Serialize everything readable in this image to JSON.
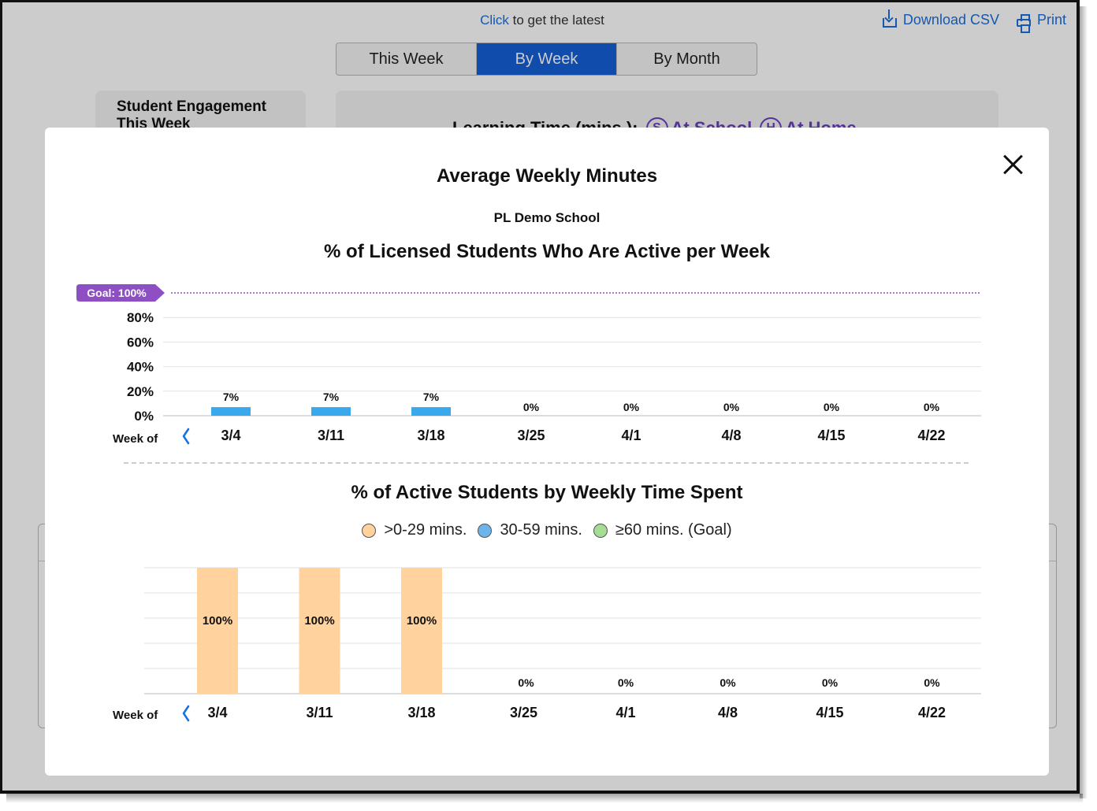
{
  "background": {
    "topline_link": "Click",
    "topline_rest": "to get the latest",
    "download_label": "Download CSV",
    "print_label": "Print",
    "tabs": [
      {
        "label": "This Week",
        "active": false
      },
      {
        "label": "By Week",
        "active": true
      },
      {
        "label": "By Month",
        "active": false
      }
    ],
    "engagement_title_line1": "Student Engagement",
    "engagement_title_line2": "This Week",
    "learning_time_title": "Learning Time (mins.):",
    "at_school_badge": "S",
    "at_school_label": "At School",
    "at_home_badge": "H",
    "at_home_label": "At Home"
  },
  "modal": {
    "title": "Average Weekly Minutes",
    "school": "PL Demo School",
    "close_icon": "close-icon"
  },
  "chart_data": [
    {
      "type": "bar",
      "title": "% of Licensed Students Who Are Active per Week",
      "xlabel": "Week of",
      "categories": [
        "3/4",
        "3/11",
        "3/18",
        "3/25",
        "4/1",
        "4/8",
        "4/15",
        "4/22"
      ],
      "values": [
        7,
        7,
        7,
        0,
        0,
        0,
        0,
        0
      ],
      "value_labels": [
        "7%",
        "7%",
        "7%",
        "0%",
        "0%",
        "0%",
        "0%",
        "0%"
      ],
      "y_ticks": [
        "0%",
        "20%",
        "40%",
        "60%",
        "80%"
      ],
      "ylim": [
        0,
        100
      ],
      "goal_value": 100,
      "goal_label": "Goal: 100%",
      "bar_color": "#3aa8ec",
      "goal_color": "#8e4fc4",
      "grid": true
    },
    {
      "type": "bar",
      "stacked": true,
      "title": "% of Active Students by Weekly Time Spent",
      "xlabel": "Week of",
      "categories": [
        "3/4",
        "3/11",
        "3/18",
        "3/25",
        "4/1",
        "4/8",
        "4/15",
        "4/22"
      ],
      "series": [
        {
          "name": ">0-29 mins.",
          "color": "#ffd29e",
          "values": [
            100,
            100,
            100,
            0,
            0,
            0,
            0,
            0
          ]
        },
        {
          "name": "30-59 mins.",
          "color": "#6cb4ea",
          "values": [
            0,
            0,
            0,
            0,
            0,
            0,
            0,
            0
          ]
        },
        {
          "name": "≥60 mins. (Goal)",
          "color": "#a5dd95",
          "values": [
            0,
            0,
            0,
            0,
            0,
            0,
            0,
            0
          ]
        }
      ],
      "value_labels": [
        "100%",
        "100%",
        "100%",
        "0%",
        "0%",
        "0%",
        "0%",
        "0%"
      ],
      "ylim": [
        0,
        100
      ],
      "legend": "top",
      "grid": true
    }
  ]
}
